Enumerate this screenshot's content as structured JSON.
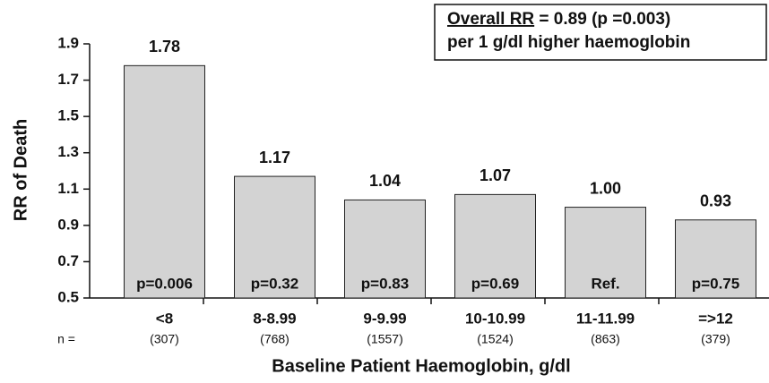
{
  "chart_data": {
    "type": "bar",
    "y_label": "RR of Death",
    "x_label": "Baseline Patient Haemoglobin, g/dl",
    "annotation": {
      "underlined": "Overall RR",
      "rest": " = 0.89 (p =0.003)",
      "line2": "per 1 g/dl higher haemoglobin"
    },
    "categories": [
      "<8",
      "8-8.99",
      "9-9.99",
      "10-10.99",
      "11-11.99",
      "=>12"
    ],
    "n_label": "n =",
    "n_values": [
      "(307)",
      "(768)",
      "(1557)",
      "(1524)",
      "(863)",
      "(379)"
    ],
    "p_labels": [
      "p=0.006",
      "p=0.32",
      "p=0.83",
      "p=0.69",
      "Ref.",
      "p=0.75"
    ],
    "values": [
      1.78,
      1.17,
      1.04,
      1.07,
      1.0,
      0.93
    ],
    "value_labels": [
      "1.78",
      "1.17",
      "1.04",
      "1.07",
      "1.00",
      "0.93"
    ],
    "color": "#d3d3d3",
    "ylim": [
      0.5,
      1.9
    ],
    "yticks": [
      0.5,
      0.7,
      0.9,
      1.1,
      1.3,
      1.5,
      1.7,
      1.9
    ]
  }
}
